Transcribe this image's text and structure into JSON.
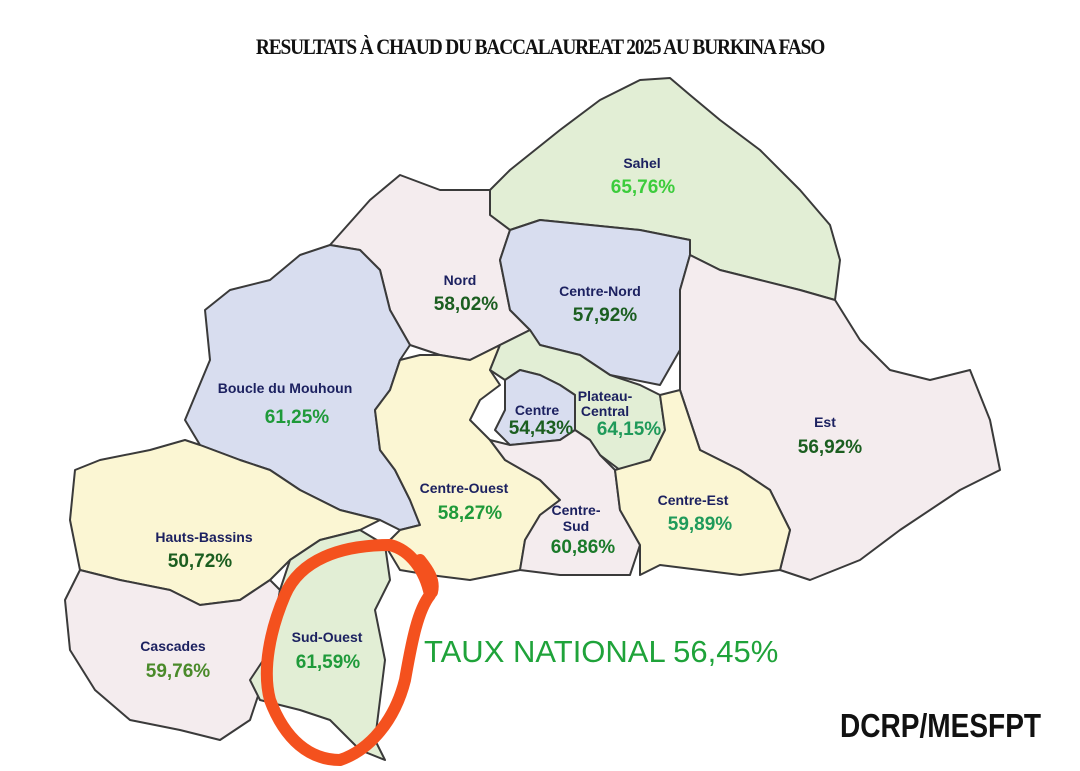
{
  "title": "RESULTATS À CHAUD DU BACCALAUREAT 2025 AU BURKINA FASO",
  "colors": {
    "blue": "#d8ddef",
    "pink": "#f4ecee",
    "yellow": "#fbf6d3",
    "green": "#e2eed5",
    "dark_green": "#1b5e20",
    "bright_green": "#3ccc3c",
    "teal": "#1f9a5a",
    "highlight": "#f4511e"
  },
  "regions": [
    {
      "name": "Sahel",
      "rate": "65,76%"
    },
    {
      "name": "Nord",
      "rate": "58,02%"
    },
    {
      "name": "Centre-Nord",
      "rate": "57,92%"
    },
    {
      "name": "Boucle du Mouhoun",
      "rate": "61,25%"
    },
    {
      "name": "Est",
      "rate": "56,92%"
    },
    {
      "name": "Hauts-Bassins",
      "rate": "50,72%"
    },
    {
      "name": "Cascades",
      "rate": "59,76%"
    },
    {
      "name": "Sud-Ouest",
      "rate": "61,59%"
    },
    {
      "name": "Centre-Ouest",
      "rate": "58,27%"
    },
    {
      "name": "Centre",
      "rate": "54,43%"
    },
    {
      "name": "Plateau-Central",
      "name_line1": "Plateau-",
      "name_line2": "Central",
      "rate": "64,15%"
    },
    {
      "name": "Centre-Sud",
      "name_line1": "Centre-",
      "name_line2": "Sud",
      "rate": "60,86%"
    },
    {
      "name": "Centre-Est",
      "rate": "59,89%"
    }
  ],
  "national": "TAUX NATIONAL 56,45%",
  "source": "DCRP/MESFPT"
}
